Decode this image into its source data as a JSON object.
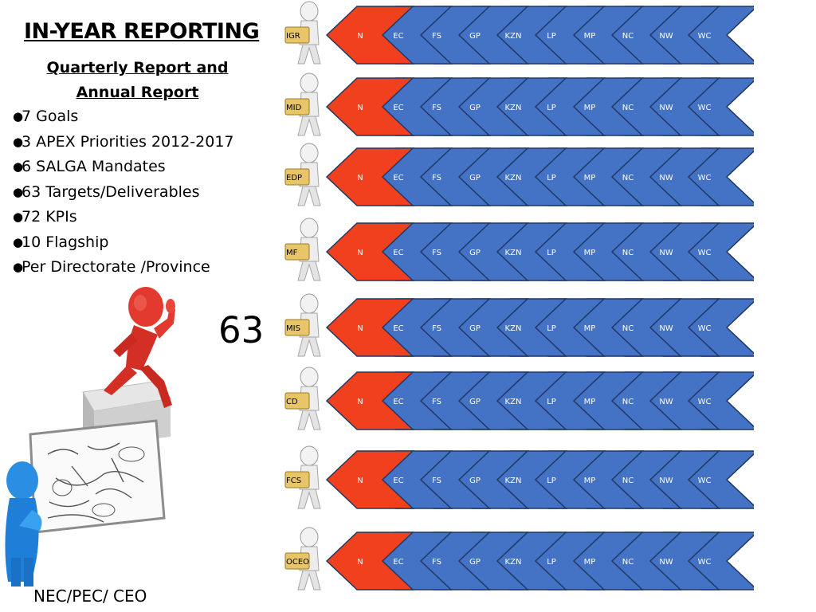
{
  "title": "IN-YEAR REPORTING",
  "subtitle": "Quarterly Report and Annual Report",
  "bullets": [
    "7 Goals",
    "3 APEX Priorities 2012-2017",
    "6 SALGA Mandates",
    "63 Targets/Deliverables",
    "72 KPIs",
    "10 Flagship",
    "Per Directorate /Province"
  ],
  "big_number": "63",
  "bottom_caption": "NEC/PEC/ CEO",
  "provinces": [
    "N",
    "EC",
    "FS",
    "GP",
    "KZN",
    "LP",
    "MP",
    "NC",
    "NW",
    "WC"
  ],
  "rows": [
    {
      "label": "IGR"
    },
    {
      "label": "MID"
    },
    {
      "label": "EDP"
    },
    {
      "label": "MF"
    },
    {
      "label": "MIS"
    },
    {
      "label": "CD"
    },
    {
      "label": "FCS"
    },
    {
      "label": "OCEO"
    }
  ],
  "colors": {
    "national": "#f0401e",
    "province": "#4472c4",
    "chevron_stroke": "#1f3864",
    "person_red": "#e23a2e",
    "person_blue": "#2a8ee3"
  }
}
